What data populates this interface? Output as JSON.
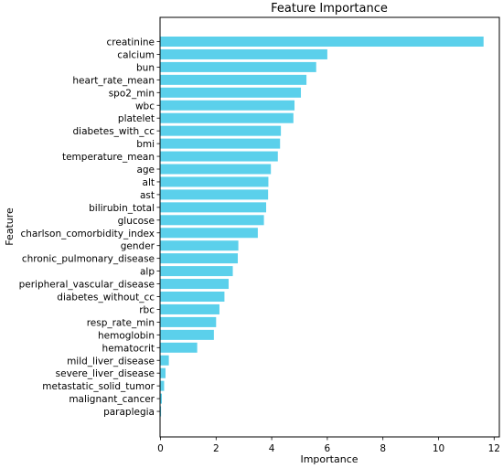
{
  "chart_data": {
    "type": "bar",
    "orientation": "horizontal",
    "title": "Feature Importance",
    "xlabel": "Importance",
    "ylabel": "Feature",
    "xlim": [
      0,
      12.2
    ],
    "xticks": [
      0,
      2,
      4,
      6,
      8,
      10,
      12
    ],
    "grid": false,
    "bar_color": "#5bd0eb",
    "categories": [
      "creatinine",
      "calcium",
      "bun",
      "heart_rate_mean",
      "spo2_min",
      "wbc",
      "platelet",
      "diabetes_with_cc",
      "bmi",
      "temperature_mean",
      "age",
      "alt",
      "ast",
      "bilirubin_total",
      "glucose",
      "charlson_comorbidity_index",
      "gender",
      "chronic_pulmonary_disease",
      "alp",
      "peripheral_vascular_disease",
      "diabetes_without_cc",
      "rbc",
      "resp_rate_min",
      "hemoglobin",
      "hematocrit",
      "mild_liver_disease",
      "severe_liver_disease",
      "metastatic_solid_tumor",
      "malignant_cancer",
      "paraplegia"
    ],
    "values": [
      11.62,
      6.0,
      5.6,
      5.25,
      5.05,
      4.82,
      4.78,
      4.33,
      4.3,
      4.22,
      3.97,
      3.88,
      3.87,
      3.8,
      3.72,
      3.5,
      2.8,
      2.78,
      2.6,
      2.45,
      2.3,
      2.12,
      2.0,
      1.92,
      1.32,
      0.3,
      0.18,
      0.13,
      0.05,
      0.02
    ]
  }
}
